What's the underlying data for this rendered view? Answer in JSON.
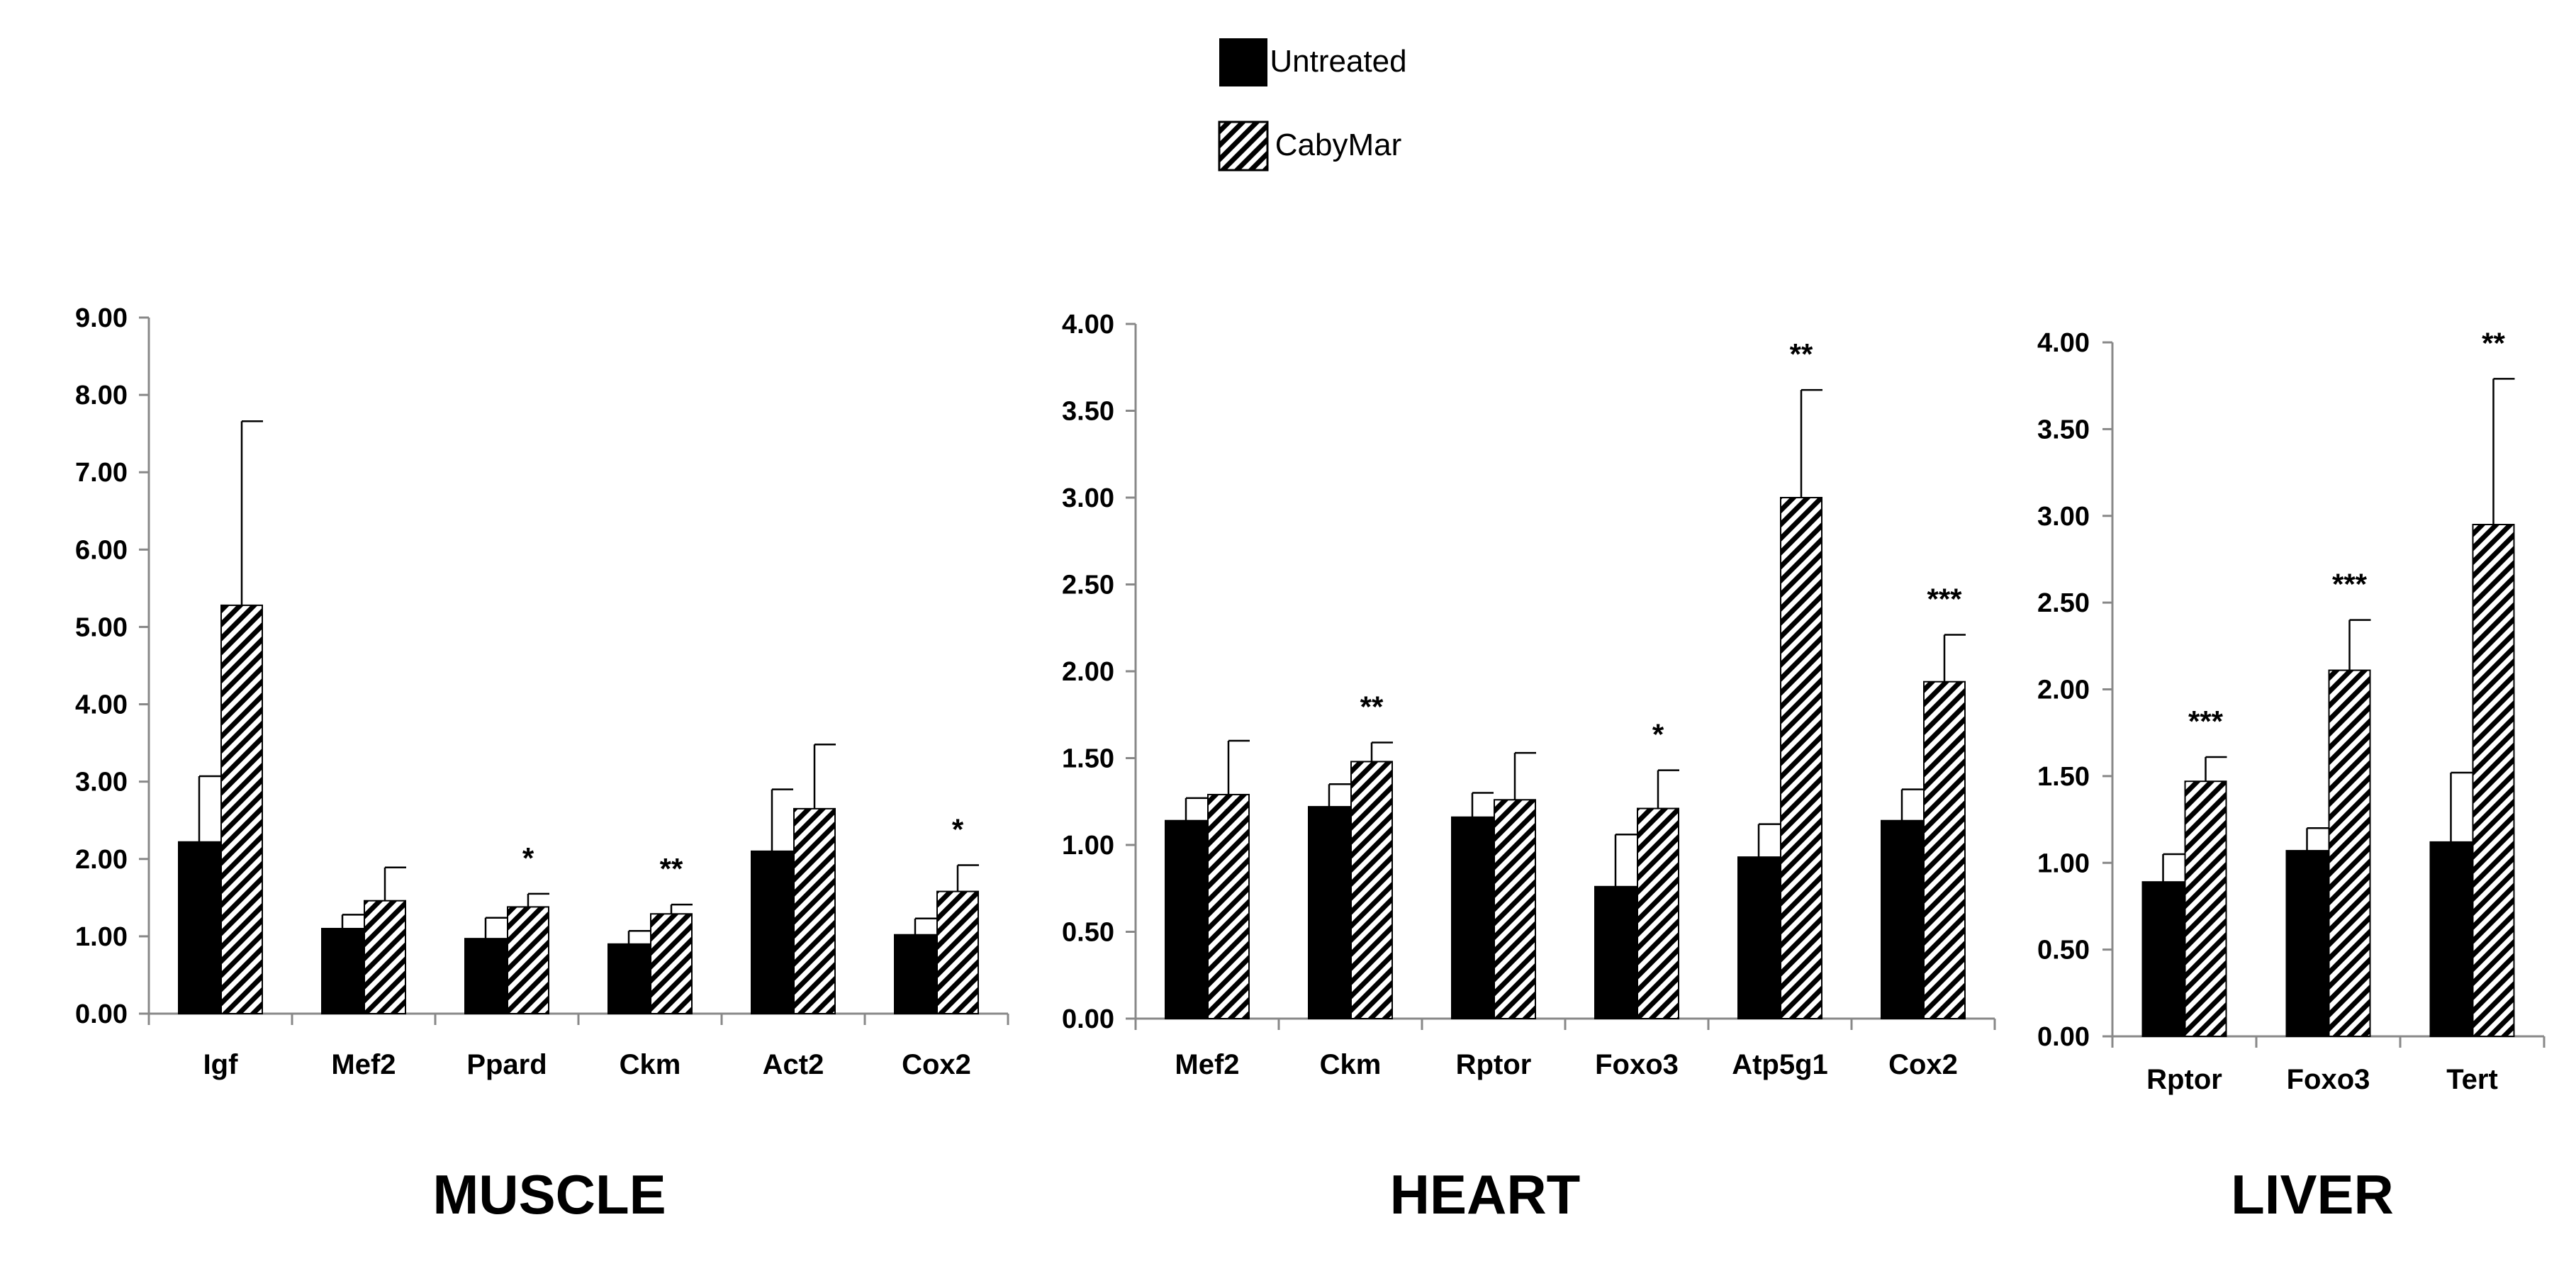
{
  "legend": {
    "items": [
      {
        "label": "Untreated",
        "fill": "#000000"
      },
      {
        "label": "CabyMar",
        "fill": "hatch"
      }
    ]
  },
  "chart_data": [
    {
      "type": "bar",
      "title": "MUSCLE",
      "categories": [
        "Igf",
        "Mef2",
        "Ppard",
        "Ckm",
        "Act2",
        "Cox2"
      ],
      "series": [
        {
          "name": "Untreated",
          "values": [
            2.22,
            1.1,
            0.97,
            0.9,
            2.1,
            1.02
          ],
          "errors": [
            0.85,
            0.18,
            0.27,
            0.17,
            0.8,
            0.21
          ]
        },
        {
          "name": "CabyMar",
          "values": [
            5.28,
            1.46,
            1.38,
            1.29,
            2.65,
            1.58
          ],
          "errors": [
            2.38,
            0.43,
            0.17,
            0.12,
            0.83,
            0.34
          ]
        }
      ],
      "significance": [
        "",
        "",
        "*",
        "**",
        "",
        "*"
      ],
      "ylim": [
        0,
        9
      ],
      "ticks": [
        "0.00",
        "1.00",
        "2.00",
        "3.00",
        "4.00",
        "5.00",
        "6.00",
        "7.00",
        "8.00",
        "9.00"
      ],
      "xlabel": "",
      "ylabel": ""
    },
    {
      "type": "bar",
      "title": "HEART",
      "categories": [
        "Mef2",
        "Ckm",
        "Rptor",
        "Foxo3",
        "Atp5g1",
        "Cox2"
      ],
      "series": [
        {
          "name": "Untreated",
          "values": [
            1.14,
            1.22,
            1.16,
            0.76,
            0.93,
            1.14
          ],
          "errors": [
            0.13,
            0.13,
            0.14,
            0.3,
            0.19,
            0.18
          ]
        },
        {
          "name": "CabyMar",
          "values": [
            1.29,
            1.48,
            1.26,
            1.21,
            3.0,
            1.94
          ],
          "errors": [
            0.31,
            0.11,
            0.27,
            0.22,
            0.62,
            0.27
          ]
        }
      ],
      "significance": [
        "",
        "**",
        "",
        "*",
        "**",
        "***"
      ],
      "ylim": [
        0,
        4
      ],
      "ticks": [
        "0.00",
        "0.50",
        "1.00",
        "1.50",
        "2.00",
        "2.50",
        "3.00",
        "3.50",
        "4.00"
      ],
      "xlabel": "",
      "ylabel": ""
    },
    {
      "type": "bar",
      "title": "LIVER",
      "categories": [
        "Rptor",
        "Foxo3",
        "Tert"
      ],
      "series": [
        {
          "name": "Untreated",
          "values": [
            0.89,
            1.07,
            1.12
          ],
          "errors": [
            0.16,
            0.13,
            0.4
          ]
        },
        {
          "name": "CabyMar",
          "values": [
            1.47,
            2.11,
            2.95
          ],
          "errors": [
            0.14,
            0.29,
            0.84
          ]
        }
      ],
      "significance": [
        "***",
        "***",
        "**"
      ],
      "ylim": [
        0,
        4
      ],
      "ticks": [
        "0.00",
        "0.50",
        "1.00",
        "1.50",
        "2.00",
        "2.50",
        "3.00",
        "3.50",
        "4.00"
      ],
      "xlabel": "",
      "ylabel": ""
    }
  ]
}
